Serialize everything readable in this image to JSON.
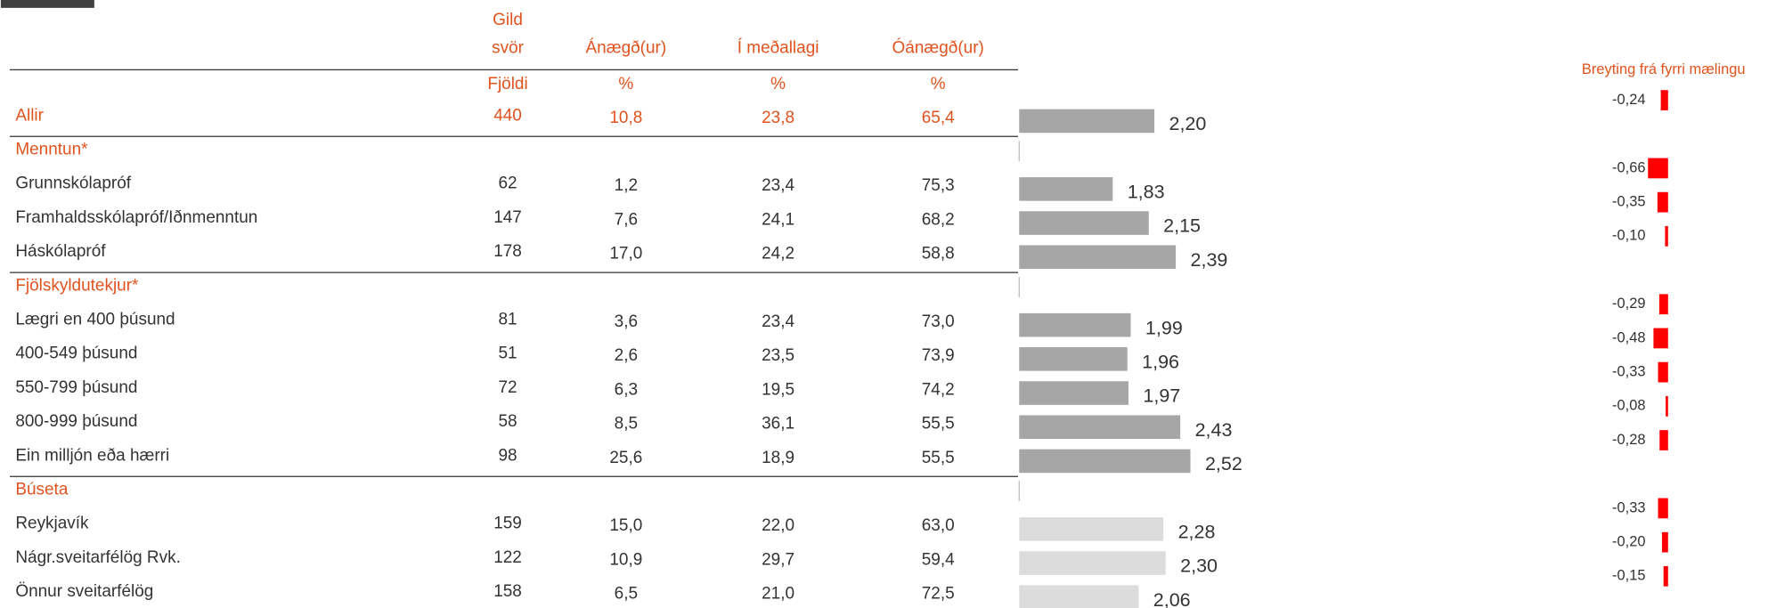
{
  "table": {
    "columns": [
      [
        "Gild",
        "svör"
      ],
      "Ánægð(ur)",
      "Í meðallagi",
      "Óánægð(ur)"
    ],
    "units": [
      "Fjöldi",
      "%",
      "%",
      "%"
    ],
    "change_title": "Breyting frá fyrri mælingu",
    "mean_axis": {
      "lim": [
        1,
        5
      ]
    },
    "change_axis": {
      "lim": [
        -1,
        0
      ]
    },
    "change_color": "#ff0000",
    "rows": [
      {
        "label": "Allir",
        "n": 440,
        "values": [
          "10,8",
          "23,8",
          "65,4"
        ],
        "mean": 2.2,
        "mean_label": "2,20",
        "change": -0.24,
        "change_label": "-0,24",
        "bar_color": "#a6a6a6"
      },
      {
        "label": "Menntun*"
      },
      {
        "label": "Grunnskólapróf",
        "n": 62,
        "values": [
          "1,2",
          "23,4",
          "75,3"
        ],
        "mean": 1.83,
        "mean_label": "1,83",
        "change": -0.66,
        "change_label": "-0,66",
        "bar_color": "#a6a6a6"
      },
      {
        "label": "Framhaldsskólapróf/Iðnmenntun",
        "n": 147,
        "values": [
          "7,6",
          "24,1",
          "68,2"
        ],
        "mean": 2.15,
        "mean_label": "2,15",
        "change": -0.35,
        "change_label": "-0,35",
        "bar_color": "#a6a6a6"
      },
      {
        "label": "Háskólapróf",
        "n": 178,
        "values": [
          "17,0",
          "24,2",
          "58,8"
        ],
        "mean": 2.39,
        "mean_label": "2,39",
        "change": -0.1,
        "change_label": "-0,10",
        "bar_color": "#a6a6a6"
      },
      {
        "label": "Fjölskyldutekjur*"
      },
      {
        "label": "Lægri en 400 þúsund",
        "n": 81,
        "values": [
          "3,6",
          "23,4",
          "73,0"
        ],
        "mean": 1.99,
        "mean_label": "1,99",
        "change": -0.29,
        "change_label": "-0,29",
        "bar_color": "#a6a6a6"
      },
      {
        "label": "400-549 þúsund",
        "n": 51,
        "values": [
          "2,6",
          "23,5",
          "73,9"
        ],
        "mean": 1.96,
        "mean_label": "1,96",
        "change": -0.48,
        "change_label": "-0,48",
        "bar_color": "#a6a6a6"
      },
      {
        "label": "550-799 þúsund",
        "n": 72,
        "values": [
          "6,3",
          "19,5",
          "74,2"
        ],
        "mean": 1.97,
        "mean_label": "1,97",
        "change": -0.33,
        "change_label": "-0,33",
        "bar_color": "#a6a6a6"
      },
      {
        "label": "800-999 þúsund",
        "n": 58,
        "values": [
          "8,5",
          "36,1",
          "55,5"
        ],
        "mean": 2.43,
        "mean_label": "2,43",
        "change": -0.08,
        "change_label": "-0,08",
        "bar_color": "#a6a6a6"
      },
      {
        "label": "Ein milljón eða hærri",
        "n": 98,
        "values": [
          "25,6",
          "18,9",
          "55,5"
        ],
        "mean": 2.52,
        "mean_label": "2,52",
        "change": -0.28,
        "change_label": "-0,28",
        "bar_color": "#a6a6a6"
      },
      {
        "label": "Búseta"
      },
      {
        "label": "Reykjavík",
        "n": 159,
        "values": [
          "15,0",
          "22,0",
          "63,0"
        ],
        "mean": 2.28,
        "mean_label": "2,28",
        "change": -0.33,
        "change_label": "-0,33",
        "bar_color": "#dcdcdc"
      },
      {
        "label": "Nágr.sveitarfélög Rvk.",
        "n": 122,
        "values": [
          "10,9",
          "29,7",
          "59,4"
        ],
        "mean": 2.3,
        "mean_label": "2,30",
        "change": -0.2,
        "change_label": "-0,20",
        "bar_color": "#dcdcdc"
      },
      {
        "label": "Önnur sveitarfélög",
        "n": 158,
        "values": [
          "6,5",
          "21,0",
          "72,5"
        ],
        "mean": 2.06,
        "mean_label": "2,06",
        "change": -0.15,
        "change_label": "-0,15",
        "bar_color": "#dcdcdc"
      }
    ]
  }
}
